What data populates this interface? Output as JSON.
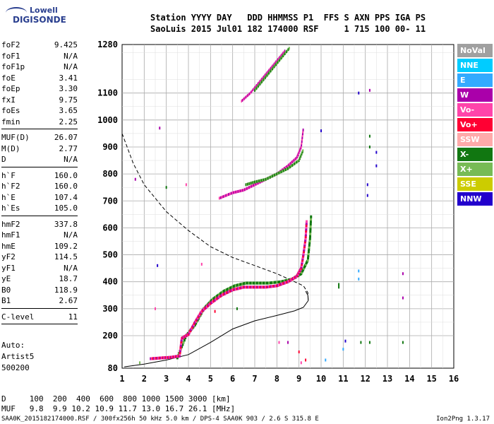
{
  "logo": {
    "top": "Lowell",
    "bottom": "DIGISONDE"
  },
  "header": {
    "line1": "Station YYYY DAY   DDD HHMMSS P1  FFS S AXN PPS IGA PS",
    "line2": "SaoLuis 2015 Jul01 182 174000 RSF     1 715 100 00- 11"
  },
  "params": [
    {
      "k": "foF2",
      "v": "9.425"
    },
    {
      "k": "foF1",
      "v": "N/A"
    },
    {
      "k": "foF1p",
      "v": "N/A"
    },
    {
      "k": "foE",
      "v": "3.41"
    },
    {
      "k": "foEp",
      "v": "3.30"
    },
    {
      "k": "fxI",
      "v": "9.75"
    },
    {
      "k": "foEs",
      "v": "3.65"
    },
    {
      "k": "fmin",
      "v": "2.25"
    },
    {
      "sep": true
    },
    {
      "k": "MUF(D)",
      "v": "26.07"
    },
    {
      "k": "M(D)",
      "v": "2.77"
    },
    {
      "k": "D",
      "v": "N/A"
    },
    {
      "sep": true
    },
    {
      "k": "h`F",
      "v": "160.0"
    },
    {
      "k": "h`F2",
      "v": "160.0"
    },
    {
      "k": "h`E",
      "v": "107.4"
    },
    {
      "k": "h`Es",
      "v": "105.0"
    },
    {
      "sep": true
    },
    {
      "k": "hmF2",
      "v": "337.8"
    },
    {
      "k": "hmF1",
      "v": "N/A"
    },
    {
      "k": "hmE",
      "v": "109.2"
    },
    {
      "k": "yF2",
      "v": "114.5"
    },
    {
      "k": "yF1",
      "v": "N/A"
    },
    {
      "k": "yE",
      "v": "18.7"
    },
    {
      "k": "B0",
      "v": "118.9"
    },
    {
      "k": "B1",
      "v": "2.67"
    },
    {
      "sep": true
    },
    {
      "k": "C-level",
      "v": "11"
    },
    {
      "sep": true
    }
  ],
  "extra": {
    "auto": "Auto:",
    "artist": "Artist5",
    "ver": "500200"
  },
  "bottom": {
    "d_row": "D     100  200  400  600  800 1000 1500 3000 [km]",
    "muf_row": "MUF   9.8  9.9 10.2 10.9 11.7 13.0 16.7 26.1 [MHz]"
  },
  "footer": {
    "left": "SAA0K_2015182174000.RSF / 300fx256h 50 kHz 5.0 km / DPS-4 SAA0K 903 / 2.6 S 315.8 E",
    "right": "Ion2Png 1.3.17"
  },
  "legend": [
    {
      "label": "NoVal",
      "color": "#a0a0a0"
    },
    {
      "label": "NNE",
      "color": "#00ccff"
    },
    {
      "label": "E",
      "color": "#33aaff"
    },
    {
      "label": "W",
      "color": "#aa00aa"
    },
    {
      "label": "Vo-",
      "color": "#ff44aa"
    },
    {
      "label": "Vo+",
      "color": "#ff0033"
    },
    {
      "label": "SSW",
      "color": "#ffaaaa"
    },
    {
      "label": "X-",
      "color": "#117711"
    },
    {
      "label": "X+",
      "color": "#77bb55"
    },
    {
      "label": "SSE",
      "color": "#cccc00"
    },
    {
      "label": "NNW",
      "color": "#2200cc"
    }
  ],
  "chart_data": {
    "type": "scatter",
    "xlabel": "",
    "ylabel": "",
    "xlim": [
      1,
      16
    ],
    "ylim": [
      80,
      1280
    ],
    "x_ticks": [
      1,
      2,
      3,
      4,
      5,
      6,
      7,
      8,
      9,
      10,
      11,
      12,
      13,
      14,
      15,
      16
    ],
    "y_ticks": [
      80,
      200,
      300,
      400,
      500,
      600,
      700,
      800,
      900,
      1000,
      1100,
      1280
    ],
    "profile_solid": [
      [
        1.1,
        85
      ],
      [
        2.0,
        95
      ],
      [
        3.0,
        110
      ],
      [
        4.0,
        130
      ],
      [
        5.0,
        175
      ],
      [
        6.0,
        225
      ],
      [
        7.0,
        255
      ],
      [
        8.0,
        275
      ],
      [
        8.8,
        292
      ],
      [
        9.2,
        305
      ],
      [
        9.42,
        330
      ],
      [
        9.4,
        350
      ],
      [
        9.3,
        365
      ]
    ],
    "profile_dashed": [
      [
        1.0,
        950
      ],
      [
        1.5,
        840
      ],
      [
        2.0,
        760
      ],
      [
        3.0,
        660
      ],
      [
        4.0,
        590
      ],
      [
        5.0,
        530
      ],
      [
        6.0,
        490
      ],
      [
        7.0,
        460
      ],
      [
        8.0,
        430
      ],
      [
        8.8,
        400
      ],
      [
        9.2,
        385
      ],
      [
        9.4,
        360
      ],
      [
        9.42,
        330
      ]
    ],
    "trace_o": [
      [
        2.3,
        115
      ],
      [
        2.8,
        118
      ],
      [
        3.2,
        120
      ],
      [
        3.6,
        125
      ],
      [
        3.7,
        190
      ],
      [
        4.0,
        205
      ],
      [
        4.3,
        250
      ],
      [
        4.6,
        290
      ],
      [
        5.0,
        320
      ],
      [
        5.5,
        350
      ],
      [
        6.0,
        370
      ],
      [
        6.5,
        380
      ],
      [
        7.0,
        380
      ],
      [
        7.5,
        380
      ],
      [
        8.0,
        385
      ],
      [
        8.5,
        400
      ],
      [
        8.9,
        420
      ],
      [
        9.1,
        450
      ],
      [
        9.2,
        500
      ],
      [
        9.3,
        560
      ],
      [
        9.35,
        630
      ]
    ],
    "trace_x": [
      [
        3.5,
        118
      ],
      [
        3.9,
        200
      ],
      [
        4.3,
        240
      ],
      [
        4.7,
        300
      ],
      [
        5.1,
        335
      ],
      [
        5.6,
        365
      ],
      [
        6.1,
        385
      ],
      [
        6.6,
        395
      ],
      [
        7.1,
        395
      ],
      [
        7.6,
        395
      ],
      [
        8.2,
        400
      ],
      [
        8.7,
        410
      ],
      [
        9.1,
        430
      ],
      [
        9.4,
        480
      ],
      [
        9.5,
        560
      ],
      [
        9.55,
        650
      ]
    ],
    "trace_o_2hop": [
      [
        5.4,
        710
      ],
      [
        6.0,
        730
      ],
      [
        6.5,
        740
      ],
      [
        7.0,
        760
      ],
      [
        7.5,
        780
      ],
      [
        8.0,
        800
      ],
      [
        8.5,
        830
      ],
      [
        8.9,
        860
      ],
      [
        9.1,
        900
      ],
      [
        9.2,
        970
      ]
    ],
    "trace_x_2hop": [
      [
        6.6,
        760
      ],
      [
        7.0,
        770
      ],
      [
        7.5,
        780
      ],
      [
        8.0,
        800
      ],
      [
        8.5,
        820
      ],
      [
        9.0,
        850
      ],
      [
        9.2,
        890
      ]
    ],
    "trace_o_3hop": [
      [
        6.4,
        1070
      ],
      [
        6.8,
        1100
      ],
      [
        7.2,
        1140
      ],
      [
        7.6,
        1180
      ],
      [
        8.0,
        1220
      ],
      [
        8.4,
        1260
      ]
    ],
    "trace_x_3hop": [
      [
        7.0,
        1110
      ],
      [
        7.4,
        1150
      ],
      [
        7.8,
        1190
      ],
      [
        8.2,
        1230
      ],
      [
        8.6,
        1270
      ]
    ],
    "noise": [
      [
        2.7,
        970,
        "#aa00aa"
      ],
      [
        2.6,
        460,
        "#2200cc"
      ],
      [
        3.0,
        750,
        "#117711"
      ],
      [
        1.6,
        780,
        "#aa00aa"
      ],
      [
        3.9,
        760,
        "#ff44aa"
      ],
      [
        10.0,
        960,
        "#2200cc"
      ],
      [
        11.7,
        1100,
        "#2200cc"
      ],
      [
        12.2,
        1110,
        "#aa00aa"
      ],
      [
        12.1,
        760,
        "#2200cc"
      ],
      [
        12.1,
        720,
        "#2200cc"
      ],
      [
        12.5,
        880,
        "#2200cc"
      ],
      [
        12.5,
        830,
        "#2200cc"
      ],
      [
        13.7,
        430,
        "#aa00aa"
      ],
      [
        13.7,
        340,
        "#aa00aa"
      ],
      [
        10.8,
        390,
        "#117711"
      ],
      [
        10.8,
        380,
        "#117711"
      ],
      [
        11.7,
        440,
        "#33aaff"
      ],
      [
        11.7,
        410,
        "#33aaff"
      ],
      [
        12.2,
        900,
        "#117711"
      ],
      [
        12.2,
        940,
        "#117711"
      ],
      [
        11.1,
        180,
        "#2200cc"
      ],
      [
        11.8,
        175,
        "#117711"
      ],
      [
        12.2,
        175,
        "#117711"
      ],
      [
        13.7,
        175,
        "#117711"
      ],
      [
        4.6,
        465,
        "#ff44aa"
      ],
      [
        5.2,
        290,
        "#ff0033"
      ],
      [
        6.2,
        300,
        "#117711"
      ],
      [
        8.1,
        175,
        "#ff44aa"
      ],
      [
        8.5,
        175,
        "#aa00aa"
      ],
      [
        9.0,
        140,
        "#ff0033"
      ],
      [
        9.1,
        100,
        "#ff44aa"
      ],
      [
        9.3,
        110,
        "#ff0033"
      ],
      [
        10.2,
        110,
        "#33aaff"
      ],
      [
        11.0,
        150,
        "#33aaff"
      ],
      [
        1.8,
        100,
        "#77bb55"
      ],
      [
        2.5,
        300,
        "#ff44aa"
      ]
    ]
  }
}
